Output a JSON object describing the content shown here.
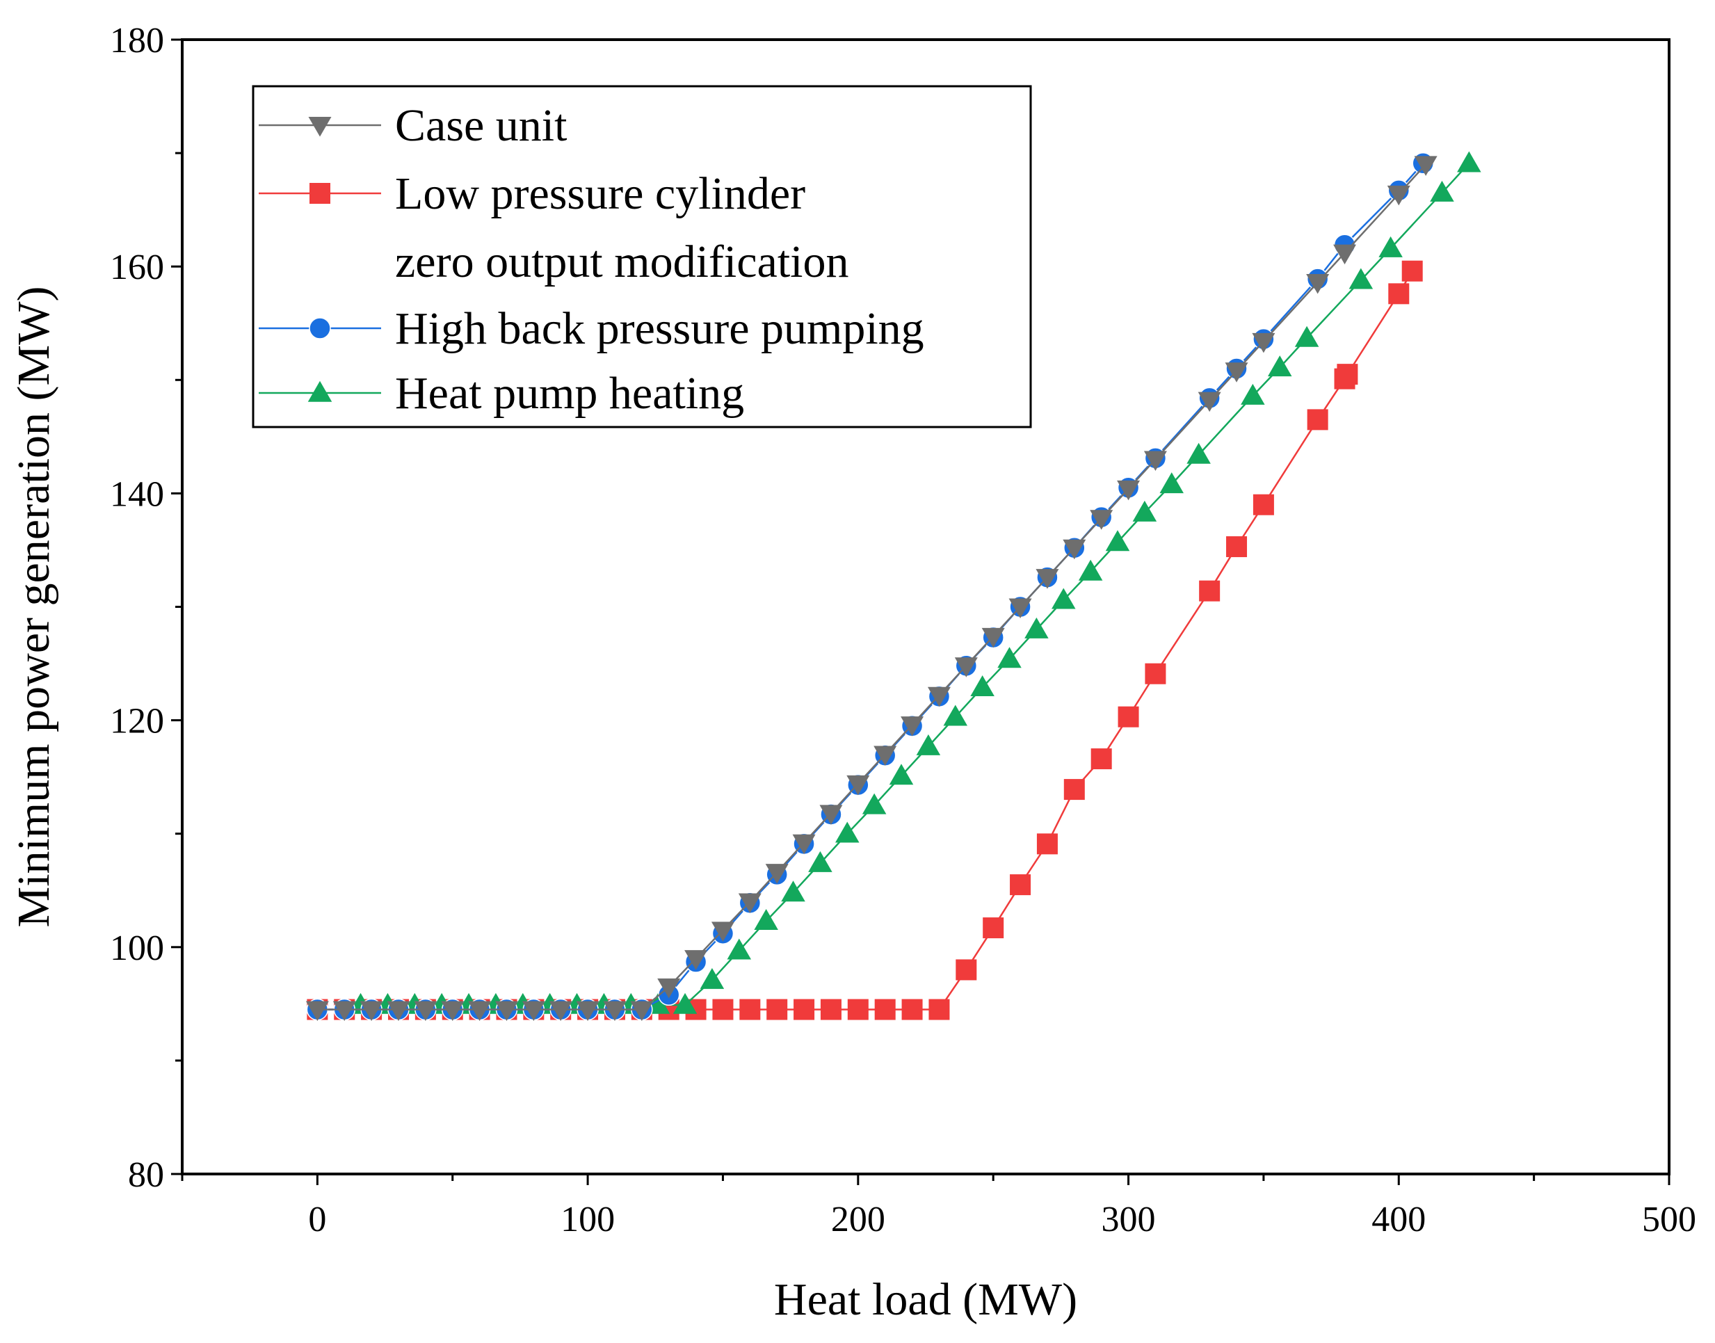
{
  "chart_data": {
    "type": "line",
    "title": "",
    "xlabel": "Heat load (MW)",
    "ylabel": "Minimum power generation (MW)",
    "xlim": [
      -50,
      500
    ],
    "ylim": [
      80,
      180
    ],
    "xticks": [
      0,
      100,
      200,
      300,
      400,
      500
    ],
    "yticks": [
      80,
      100,
      120,
      140,
      160,
      180
    ],
    "grid": false,
    "legend_position": "top-left",
    "series": [
      {
        "name": "Case unit",
        "color": "#6e6e6e",
        "marker": "triangle-down",
        "x": [
          0,
          10,
          20,
          30,
          40,
          50,
          60,
          70,
          80,
          90,
          100,
          110,
          120,
          130,
          140,
          150,
          160,
          170,
          180,
          190,
          200,
          210,
          220,
          230,
          240,
          250,
          260,
          270,
          280,
          290,
          300,
          310,
          330,
          340,
          350,
          370,
          380,
          400,
          410
        ],
        "y": [
          94.5,
          94.5,
          94.5,
          94.5,
          94.5,
          94.5,
          94.5,
          94.5,
          94.5,
          94.5,
          94.5,
          94.5,
          94.5,
          96.5,
          99,
          101.5,
          104,
          106.6,
          109.2,
          111.8,
          114.4,
          117,
          119.6,
          122.2,
          124.8,
          127.4,
          130,
          132.6,
          135.2,
          137.8,
          140.4,
          143,
          148.2,
          150.8,
          153.4,
          158.6,
          161.2,
          166.4,
          169
        ]
      },
      {
        "name": "Low pressure cylinder zero output modification",
        "color": "#f03b3b",
        "marker": "square",
        "x": [
          0,
          10,
          20,
          30,
          40,
          50,
          60,
          70,
          80,
          90,
          100,
          110,
          120,
          130,
          140,
          150,
          160,
          170,
          180,
          190,
          200,
          210,
          220,
          230,
          240,
          250,
          260,
          270,
          280,
          290,
          300,
          310,
          330,
          340,
          350,
          370,
          380,
          381,
          400,
          405
        ],
        "y": [
          94.5,
          94.5,
          94.5,
          94.5,
          94.5,
          94.5,
          94.5,
          94.5,
          94.5,
          94.5,
          94.5,
          94.5,
          94.5,
          94.5,
          94.5,
          94.5,
          94.5,
          94.5,
          94.5,
          94.5,
          94.5,
          94.5,
          94.5,
          94.5,
          98,
          101.7,
          105.5,
          109.1,
          113.9,
          116.6,
          120.3,
          124.1,
          131.4,
          135.3,
          139,
          146.5,
          150.1,
          150.5,
          157.6,
          159.6
        ]
      },
      {
        "name": "High back pressure pumping",
        "color": "#1a6fe0",
        "marker": "circle",
        "x": [
          0,
          10,
          20,
          30,
          40,
          50,
          60,
          70,
          80,
          90,
          100,
          110,
          120,
          130,
          140,
          150,
          160,
          170,
          180,
          190,
          200,
          210,
          220,
          230,
          240,
          250,
          260,
          270,
          280,
          290,
          300,
          310,
          330,
          340,
          350,
          370,
          380,
          400,
          409
        ],
        "y": [
          94.5,
          94.5,
          94.5,
          94.5,
          94.5,
          94.5,
          94.5,
          94.5,
          94.5,
          94.5,
          94.5,
          94.5,
          94.5,
          95.8,
          98.7,
          101.2,
          103.9,
          106.4,
          109.1,
          111.7,
          114.3,
          116.9,
          119.5,
          122.1,
          124.8,
          127.3,
          130,
          132.6,
          135.2,
          137.9,
          140.5,
          143.1,
          148.4,
          151,
          153.6,
          158.9,
          161.9,
          166.7,
          169.1
        ]
      },
      {
        "name": "Heat pump heating",
        "color": "#13a85c",
        "marker": "triangle-up",
        "x": [
          16,
          26,
          36,
          46,
          56,
          66,
          76,
          86,
          96,
          106,
          116,
          126,
          136,
          146,
          156,
          166,
          176,
          186,
          196,
          206,
          216,
          226,
          236,
          246,
          256,
          266,
          276,
          286,
          296,
          306,
          316,
          326,
          346,
          356,
          366,
          386,
          397,
          416,
          426
        ],
        "y": [
          94.9,
          94.9,
          94.9,
          94.9,
          94.9,
          94.9,
          94.9,
          94.9,
          94.9,
          94.9,
          94.9,
          94.9,
          94.9,
          97.1,
          99.7,
          102.3,
          104.8,
          107.4,
          110,
          112.5,
          115.1,
          117.7,
          120.3,
          122.9,
          125.4,
          128,
          130.6,
          133.1,
          135.7,
          138.3,
          140.8,
          143.4,
          148.6,
          151.1,
          153.7,
          158.8,
          161.6,
          166.5,
          169.1
        ]
      }
    ],
    "legend": {
      "entries": [
        {
          "lines": [
            "Case unit"
          ]
        },
        {
          "lines": [
            "Low pressure cylinder",
            "zero output modification"
          ]
        },
        {
          "lines": [
            "High back pressure pumping"
          ]
        },
        {
          "lines": [
            "Heat pump heating"
          ]
        }
      ]
    }
  }
}
